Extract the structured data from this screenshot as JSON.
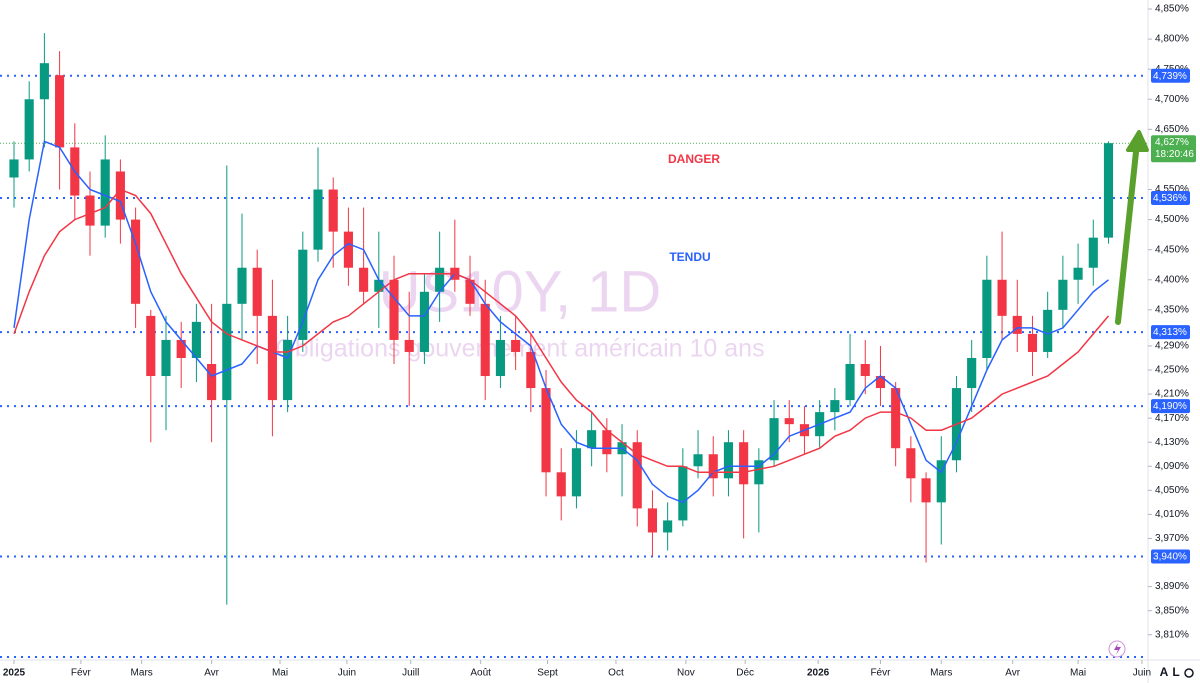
{
  "chart_data": {
    "type": "candlestick",
    "title": "US10Y, 1D",
    "subtitle": "Obligations gouvernement américain 10 ans",
    "x": [
      0,
      1,
      2,
      3,
      4,
      5,
      6,
      7,
      8,
      9,
      10,
      11,
      12,
      13,
      14,
      15,
      16,
      17,
      18,
      19,
      20,
      21,
      22,
      23,
      24,
      25,
      26,
      27,
      28,
      29,
      30,
      31,
      32,
      33,
      34,
      35,
      36,
      37,
      38,
      39,
      40,
      41,
      42,
      43,
      44,
      45,
      46,
      47,
      48,
      49,
      50,
      51,
      52,
      53,
      54,
      55,
      56,
      57,
      58,
      59,
      60,
      61,
      62,
      63,
      64,
      65,
      66,
      67,
      68,
      69,
      70,
      71,
      72
    ],
    "open": [
      4.57,
      4.6,
      4.7,
      4.74,
      4.62,
      4.54,
      4.49,
      4.58,
      4.5,
      4.34,
      4.24,
      4.3,
      4.27,
      4.26,
      4.2,
      4.36,
      4.42,
      4.34,
      4.2,
      4.3,
      4.45,
      4.55,
      4.48,
      4.42,
      4.38,
      4.4,
      4.3,
      4.28,
      4.38,
      4.42,
      4.4,
      4.36,
      4.24,
      4.3,
      4.28,
      4.22,
      4.08,
      4.04,
      4.12,
      4.15,
      4.11,
      4.13,
      4.02,
      3.98,
      4.0,
      4.09,
      4.11,
      4.07,
      4.13,
      4.06,
      4.1,
      4.17,
      4.16,
      4.14,
      4.18,
      4.2,
      4.26,
      4.24,
      4.22,
      4.12,
      4.07,
      4.03,
      4.1,
      4.22,
      4.27,
      4.4,
      4.34,
      4.31,
      4.28,
      4.35,
      4.4,
      4.42,
      4.47
    ],
    "high": [
      4.63,
      4.73,
      4.81,
      4.78,
      4.66,
      4.58,
      4.64,
      4.6,
      4.52,
      4.35,
      4.34,
      4.33,
      4.36,
      4.36,
      4.59,
      4.51,
      4.45,
      4.4,
      4.34,
      4.48,
      4.62,
      4.57,
      4.52,
      4.52,
      4.48,
      4.44,
      4.38,
      4.41,
      4.48,
      4.5,
      4.44,
      4.4,
      4.34,
      4.34,
      4.31,
      4.25,
      4.12,
      4.15,
      4.18,
      4.17,
      4.16,
      4.15,
      4.05,
      4.03,
      4.12,
      4.15,
      4.14,
      4.15,
      4.15,
      4.12,
      4.2,
      4.2,
      4.19,
      4.2,
      4.22,
      4.31,
      4.3,
      4.29,
      4.23,
      4.14,
      4.08,
      4.14,
      4.24,
      4.3,
      4.44,
      4.48,
      4.4,
      4.34,
      4.38,
      4.44,
      4.46,
      4.5,
      4.63
    ],
    "low": [
      4.52,
      4.58,
      4.62,
      4.55,
      4.5,
      4.44,
      4.47,
      4.46,
      4.32,
      4.13,
      4.15,
      4.22,
      4.23,
      4.13,
      3.86,
      4.3,
      4.26,
      4.14,
      4.18,
      4.28,
      4.43,
      4.42,
      4.39,
      4.36,
      4.32,
      4.26,
      4.19,
      4.26,
      4.33,
      4.38,
      4.34,
      4.2,
      4.22,
      4.25,
      4.18,
      4.04,
      4.0,
      4.02,
      4.09,
      4.08,
      4.04,
      3.99,
      3.94,
      3.95,
      3.99,
      4.07,
      4.04,
      4.04,
      3.97,
      3.98,
      4.09,
      4.13,
      4.11,
      4.12,
      4.15,
      4.19,
      4.21,
      4.19,
      4.09,
      4.03,
      3.93,
      3.96,
      4.08,
      4.18,
      4.25,
      4.3,
      4.28,
      4.24,
      4.27,
      4.32,
      4.36,
      4.39,
      4.46
    ],
    "close": [
      4.6,
      4.7,
      4.76,
      4.62,
      4.54,
      4.49,
      4.6,
      4.5,
      4.36,
      4.24,
      4.3,
      4.27,
      4.33,
      4.2,
      4.36,
      4.42,
      4.34,
      4.2,
      4.3,
      4.45,
      4.55,
      4.48,
      4.42,
      4.38,
      4.4,
      4.3,
      4.28,
      4.38,
      4.42,
      4.4,
      4.36,
      4.24,
      4.3,
      4.28,
      4.22,
      4.08,
      4.04,
      4.12,
      4.15,
      4.11,
      4.13,
      4.02,
      3.98,
      4.0,
      4.09,
      4.11,
      4.07,
      4.13,
      4.06,
      4.1,
      4.17,
      4.16,
      4.14,
      4.18,
      4.2,
      4.26,
      4.24,
      4.22,
      4.12,
      4.07,
      4.03,
      4.1,
      4.22,
      4.27,
      4.4,
      4.34,
      4.31,
      4.28,
      4.35,
      4.4,
      4.42,
      4.47,
      4.627
    ],
    "up_color": "#089981",
    "down_color": "#f23645",
    "moving_averages": [
      {
        "color": "#2962ff",
        "values": [
          4.32,
          4.5,
          4.63,
          4.62,
          4.58,
          4.55,
          4.54,
          4.53,
          4.46,
          4.38,
          4.33,
          4.3,
          4.27,
          4.24,
          4.25,
          4.26,
          4.29,
          4.28,
          4.27,
          4.33,
          4.4,
          4.44,
          4.46,
          4.45,
          4.4,
          4.37,
          4.34,
          4.34,
          4.38,
          4.41,
          4.4,
          4.36,
          4.33,
          4.31,
          4.29,
          4.22,
          4.16,
          4.13,
          4.12,
          4.12,
          4.12,
          4.1,
          4.06,
          4.04,
          4.03,
          4.05,
          4.08,
          4.09,
          4.09,
          4.09,
          4.11,
          4.14,
          4.15,
          4.16,
          4.17,
          4.18,
          4.22,
          4.24,
          4.22,
          4.16,
          4.1,
          4.08,
          4.13,
          4.19,
          4.25,
          4.3,
          4.32,
          4.32,
          4.31,
          4.32,
          4.35,
          4.38,
          4.4
        ]
      },
      {
        "color": "#f23645",
        "values": [
          4.31,
          4.38,
          4.44,
          4.48,
          4.5,
          4.51,
          4.52,
          4.55,
          4.54,
          4.51,
          4.46,
          4.41,
          4.37,
          4.33,
          4.31,
          4.3,
          4.29,
          4.28,
          4.28,
          4.29,
          4.31,
          4.33,
          4.34,
          4.36,
          4.38,
          4.4,
          4.41,
          4.41,
          4.41,
          4.41,
          4.4,
          4.38,
          4.36,
          4.34,
          4.31,
          4.27,
          4.23,
          4.2,
          4.18,
          4.15,
          4.13,
          4.11,
          4.1,
          4.09,
          4.09,
          4.08,
          4.08,
          4.08,
          4.08,
          4.085,
          4.09,
          4.1,
          4.11,
          4.12,
          4.14,
          4.15,
          4.17,
          4.18,
          4.18,
          4.17,
          4.15,
          4.15,
          4.16,
          4.17,
          4.19,
          4.21,
          4.22,
          4.23,
          4.24,
          4.26,
          4.28,
          4.31,
          4.34
        ]
      }
    ],
    "xlim": [
      -0.92,
      74.6
    ],
    "ylim": [
      3.768,
      4.865
    ],
    "xticks": [
      {
        "value": 0,
        "label": "2025"
      },
      {
        "value": 4.4,
        "label": "Févr"
      },
      {
        "value": 8.4,
        "label": "Mars"
      },
      {
        "value": 13.0,
        "label": "Avr"
      },
      {
        "value": 17.5,
        "label": "Mai"
      },
      {
        "value": 21.9,
        "label": "Juin"
      },
      {
        "value": 26.1,
        "label": "Juill"
      },
      {
        "value": 30.7,
        "label": "Août"
      },
      {
        "value": 35.1,
        "label": "Sept"
      },
      {
        "value": 39.6,
        "label": "Oct"
      },
      {
        "value": 44.2,
        "label": "Nov"
      },
      {
        "value": 48.1,
        "label": "Déc"
      },
      {
        "value": 52.9,
        "label": "2026"
      },
      {
        "value": 57.0,
        "label": "Févr"
      },
      {
        "value": 61.0,
        "label": "Mars"
      },
      {
        "value": 65.7,
        "label": "Avr"
      },
      {
        "value": 70.0,
        "label": "Mai"
      },
      {
        "value": 74.2,
        "label": "Juin"
      }
    ],
    "yticks": [
      {
        "value": 4.85,
        "label": "4,850%"
      },
      {
        "value": 4.8,
        "label": "4,800%"
      },
      {
        "value": 4.75,
        "label": "4,750%"
      },
      {
        "value": 4.7,
        "label": "4,700%"
      },
      {
        "value": 4.65,
        "label": "4,650%"
      },
      {
        "value": 4.55,
        "label": "4,550%"
      },
      {
        "value": 4.5,
        "label": "4,500%"
      },
      {
        "value": 4.45,
        "label": "4,450%"
      },
      {
        "value": 4.4,
        "label": "4,400%"
      },
      {
        "value": 4.35,
        "label": "4,350%"
      },
      {
        "value": 4.29,
        "label": "4,290%"
      },
      {
        "value": 4.25,
        "label": "4,250%"
      },
      {
        "value": 4.21,
        "label": "4,210%"
      },
      {
        "value": 4.17,
        "label": "4,170%"
      },
      {
        "value": 4.13,
        "label": "4,130%"
      },
      {
        "value": 4.09,
        "label": "4,090%"
      },
      {
        "value": 4.05,
        "label": "4,050%"
      },
      {
        "value": 4.01,
        "label": "4,010%"
      },
      {
        "value": 3.97,
        "label": "3,970%"
      },
      {
        "value": 3.89,
        "label": "3,890%"
      },
      {
        "value": 3.85,
        "label": "3,850%"
      },
      {
        "value": 3.81,
        "label": "3,810%"
      }
    ],
    "grid": false,
    "levels": [
      {
        "value": 4.739,
        "label": "4,739%",
        "color": "#2962ff"
      },
      {
        "value": 4.536,
        "label": "4,536%",
        "color": "#2962ff"
      },
      {
        "value": 4.313,
        "label": "4,313%",
        "color": "#2962ff"
      },
      {
        "value": 4.19,
        "label": "4,190%",
        "color": "#2962ff"
      },
      {
        "value": 3.94,
        "label": "3,940%",
        "color": "#2962ff"
      }
    ],
    "last_price": {
      "value": 4.627,
      "label": "4,627%",
      "countdown": "18:20:46",
      "color": "#4caf50"
    },
    "annotations": [
      {
        "text": "DANGER",
        "color": "#f23645"
      },
      {
        "text": "TENDU",
        "color": "#2962ff"
      }
    ]
  },
  "toolbar": {
    "buttons": [
      "A",
      "L"
    ]
  }
}
